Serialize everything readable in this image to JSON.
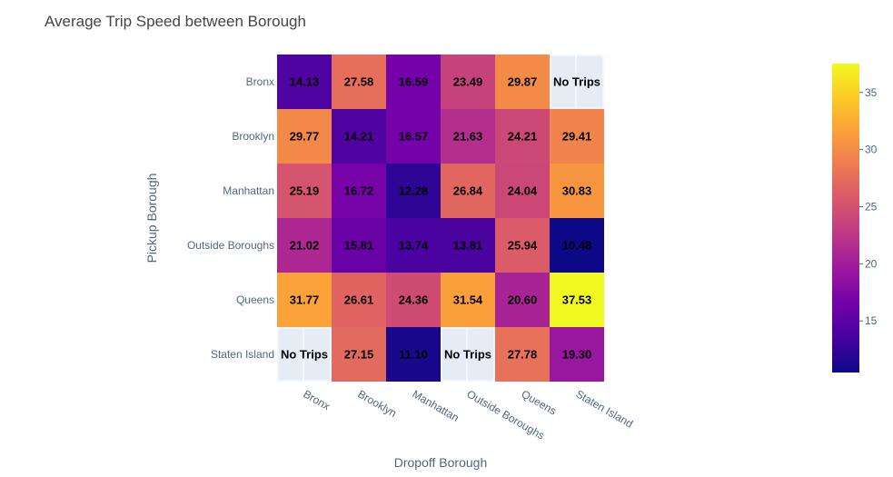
{
  "chart_data": {
    "type": "heatmap",
    "title": "Average Trip Speed between Borough",
    "xlabel": "Dropoff Borough",
    "ylabel": "Pickup Borough",
    "x": [
      "Bronx",
      "Brooklyn",
      "Manhattan",
      "Outside Boroughs",
      "Queens",
      "Staten Island"
    ],
    "y": [
      "Bronx",
      "Brooklyn",
      "Manhattan",
      "Outside Boroughs",
      "Queens",
      "Staten Island"
    ],
    "z": [
      [
        14.13,
        27.58,
        16.59,
        23.49,
        29.87,
        null
      ],
      [
        29.77,
        14.21,
        16.57,
        21.63,
        24.21,
        29.41
      ],
      [
        25.19,
        16.72,
        12.28,
        26.84,
        24.04,
        30.83
      ],
      [
        21.02,
        15.81,
        13.74,
        13.81,
        25.94,
        10.48
      ],
      [
        31.77,
        26.61,
        24.36,
        31.54,
        20.6,
        37.53
      ],
      [
        null,
        27.15,
        11.1,
        null,
        27.78,
        19.3
      ]
    ],
    "missing_label": "No Trips",
    "missing_color": "#e5ecf6",
    "colorscale": "plasma",
    "zmin": 10.48,
    "zmax": 37.53,
    "colorbar_ticks": [
      15,
      20,
      25,
      30,
      35
    ]
  }
}
